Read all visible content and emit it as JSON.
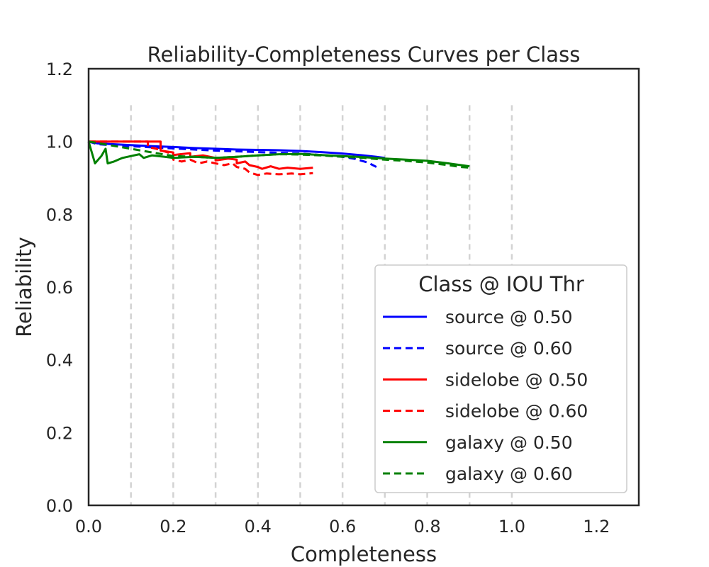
{
  "chart_data": {
    "type": "line",
    "title": "Reliability-Completeness Curves per Class",
    "xlabel": "Completeness",
    "ylabel": "Reliability",
    "xlim": [
      0.0,
      1.3
    ],
    "ylim": [
      0.0,
      1.2
    ],
    "xticks": [
      0.0,
      0.2,
      0.4,
      0.6,
      0.8,
      1.0,
      1.2
    ],
    "xtick_labels": [
      "0.0",
      "0.2",
      "0.4",
      "0.6",
      "0.8",
      "1.0",
      "1.2"
    ],
    "yticks": [
      0.0,
      0.2,
      0.4,
      0.6,
      0.8,
      1.0,
      1.2
    ],
    "ytick_labels": [
      "0.0",
      "0.2",
      "0.4",
      "0.6",
      "0.8",
      "1.0",
      "1.2"
    ],
    "vertical_gridlines_x": [
      0.1,
      0.2,
      0.3,
      0.4,
      0.5,
      0.6,
      0.7,
      0.8,
      0.9,
      1.0
    ],
    "vertical_gridline_ymax": 1.1,
    "legend": {
      "title": "Class @ IOU Thr",
      "placement": "lower-right"
    },
    "series": [
      {
        "name": "source @ 0.50",
        "color": "#0000ff",
        "dashed": false,
        "points": [
          [
            0.0,
            1.0
          ],
          [
            0.02,
            0.995
          ],
          [
            0.05,
            0.993
          ],
          [
            0.1,
            0.99
          ],
          [
            0.15,
            0.987
          ],
          [
            0.2,
            0.985
          ],
          [
            0.25,
            0.982
          ],
          [
            0.3,
            0.98
          ],
          [
            0.35,
            0.978
          ],
          [
            0.4,
            0.977
          ],
          [
            0.45,
            0.976
          ],
          [
            0.5,
            0.974
          ],
          [
            0.55,
            0.971
          ],
          [
            0.6,
            0.967
          ],
          [
            0.64,
            0.963
          ],
          [
            0.68,
            0.958
          ],
          [
            0.7,
            0.955
          ]
        ]
      },
      {
        "name": "source @ 0.60",
        "color": "#0000ff",
        "dashed": true,
        "points": [
          [
            0.0,
            1.0
          ],
          [
            0.02,
            0.993
          ],
          [
            0.05,
            0.99
          ],
          [
            0.1,
            0.987
          ],
          [
            0.15,
            0.984
          ],
          [
            0.2,
            0.981
          ],
          [
            0.25,
            0.978
          ],
          [
            0.3,
            0.975
          ],
          [
            0.35,
            0.973
          ],
          [
            0.4,
            0.971
          ],
          [
            0.45,
            0.969
          ],
          [
            0.5,
            0.967
          ],
          [
            0.55,
            0.963
          ],
          [
            0.6,
            0.958
          ],
          [
            0.63,
            0.952
          ],
          [
            0.66,
            0.942
          ],
          [
            0.68,
            0.93
          ]
        ]
      },
      {
        "name": "sidelobe @ 0.50",
        "color": "#ff0000",
        "dashed": false,
        "points": [
          [
            0.0,
            1.0
          ],
          [
            0.17,
            1.0
          ],
          [
            0.17,
            0.975
          ],
          [
            0.2,
            0.97
          ],
          [
            0.2,
            0.963
          ],
          [
            0.24,
            0.968
          ],
          [
            0.24,
            0.958
          ],
          [
            0.27,
            0.962
          ],
          [
            0.3,
            0.955
          ],
          [
            0.3,
            0.948
          ],
          [
            0.33,
            0.953
          ],
          [
            0.35,
            0.95
          ],
          [
            0.35,
            0.94
          ],
          [
            0.37,
            0.945
          ],
          [
            0.38,
            0.935
          ],
          [
            0.4,
            0.93
          ],
          [
            0.41,
            0.925
          ],
          [
            0.43,
            0.932
          ],
          [
            0.45,
            0.925
          ],
          [
            0.47,
            0.928
          ],
          [
            0.5,
            0.925
          ],
          [
            0.53,
            0.928
          ]
        ]
      },
      {
        "name": "sidelobe @ 0.60",
        "color": "#ff0000",
        "dashed": true,
        "points": [
          [
            0.0,
            1.0
          ],
          [
            0.14,
            1.0
          ],
          [
            0.14,
            0.985
          ],
          [
            0.16,
            0.98
          ],
          [
            0.2,
            0.965
          ],
          [
            0.2,
            0.95
          ],
          [
            0.22,
            0.945
          ],
          [
            0.24,
            0.95
          ],
          [
            0.26,
            0.94
          ],
          [
            0.28,
            0.945
          ],
          [
            0.3,
            0.94
          ],
          [
            0.32,
            0.935
          ],
          [
            0.34,
            0.94
          ],
          [
            0.35,
            0.93
          ],
          [
            0.37,
            0.925
          ],
          [
            0.38,
            0.915
          ],
          [
            0.4,
            0.908
          ],
          [
            0.42,
            0.912
          ],
          [
            0.45,
            0.91
          ],
          [
            0.48,
            0.912
          ],
          [
            0.5,
            0.91
          ],
          [
            0.53,
            0.913
          ]
        ]
      },
      {
        "name": "galaxy @ 0.50",
        "color": "#008000",
        "dashed": false,
        "points": [
          [
            0.0,
            1.0
          ],
          [
            0.015,
            0.94
          ],
          [
            0.03,
            0.96
          ],
          [
            0.04,
            0.98
          ],
          [
            0.045,
            0.94
          ],
          [
            0.06,
            0.945
          ],
          [
            0.08,
            0.955
          ],
          [
            0.1,
            0.96
          ],
          [
            0.12,
            0.965
          ],
          [
            0.13,
            0.955
          ],
          [
            0.15,
            0.962
          ],
          [
            0.18,
            0.958
          ],
          [
            0.2,
            0.955
          ],
          [
            0.25,
            0.958
          ],
          [
            0.3,
            0.955
          ],
          [
            0.35,
            0.958
          ],
          [
            0.4,
            0.962
          ],
          [
            0.45,
            0.965
          ],
          [
            0.5,
            0.966
          ],
          [
            0.55,
            0.963
          ],
          [
            0.6,
            0.96
          ],
          [
            0.65,
            0.957
          ],
          [
            0.7,
            0.953
          ],
          [
            0.75,
            0.95
          ],
          [
            0.8,
            0.947
          ],
          [
            0.85,
            0.94
          ],
          [
            0.88,
            0.935
          ],
          [
            0.9,
            0.932
          ]
        ]
      },
      {
        "name": "galaxy @ 0.60",
        "color": "#008000",
        "dashed": true,
        "points": [
          [
            0.0,
            1.0
          ],
          [
            0.2,
            0.96
          ],
          [
            0.25,
            0.958
          ],
          [
            0.3,
            0.955
          ],
          [
            0.35,
            0.958
          ],
          [
            0.4,
            0.962
          ],
          [
            0.45,
            0.965
          ],
          [
            0.5,
            0.964
          ],
          [
            0.55,
            0.962
          ],
          [
            0.6,
            0.958
          ],
          [
            0.65,
            0.955
          ],
          [
            0.7,
            0.95
          ],
          [
            0.75,
            0.947
          ],
          [
            0.8,
            0.942
          ],
          [
            0.85,
            0.935
          ],
          [
            0.88,
            0.93
          ],
          [
            0.9,
            0.928
          ]
        ]
      }
    ]
  }
}
